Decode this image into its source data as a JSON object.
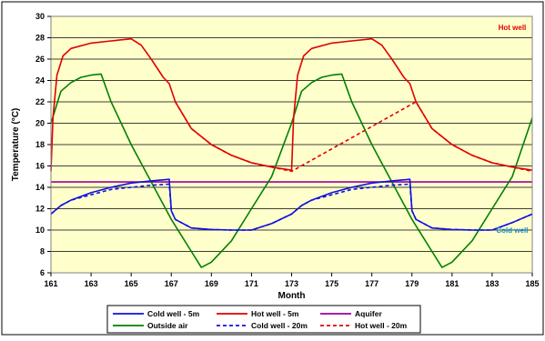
{
  "chart_data": {
    "type": "line",
    "title": "",
    "xlabel": "Month",
    "ylabel": "Temperature (°C)",
    "xlim": [
      161,
      185
    ],
    "ylim": [
      6,
      30
    ],
    "x_ticks": [
      161,
      163,
      165,
      167,
      169,
      171,
      173,
      175,
      177,
      179,
      181,
      183,
      185
    ],
    "y_ticks": [
      6,
      8,
      10,
      12,
      14,
      16,
      18,
      20,
      22,
      24,
      26,
      28,
      30
    ],
    "grid": "horizontal",
    "legend_position": "bottom",
    "annotations": [
      {
        "text": "Hot well",
        "x": 184,
        "y": 29,
        "color": "#e00000"
      },
      {
        "text": "Cold well",
        "x": 184,
        "y": 10,
        "color": "#1a8fd0"
      }
    ],
    "series": [
      {
        "name": "Cold well - 5m",
        "color": "#1010e0",
        "style": "solid",
        "points": [
          [
            161,
            11.5
          ],
          [
            161.5,
            12.3
          ],
          [
            162,
            12.8
          ],
          [
            163,
            13.5
          ],
          [
            164,
            14.0
          ],
          [
            165,
            14.4
          ],
          [
            166,
            14.6
          ],
          [
            166.9,
            14.75
          ],
          [
            167.0,
            11.8
          ],
          [
            167.2,
            11.0
          ],
          [
            168,
            10.2
          ],
          [
            169,
            10.05
          ],
          [
            170,
            10.0
          ],
          [
            171,
            10.0
          ],
          [
            172,
            10.6
          ],
          [
            173,
            11.5
          ],
          [
            173.5,
            12.3
          ],
          [
            174,
            12.8
          ],
          [
            175,
            13.5
          ],
          [
            176,
            14.0
          ],
          [
            177,
            14.4
          ],
          [
            178,
            14.6
          ],
          [
            178.9,
            14.75
          ],
          [
            179.0,
            11.8
          ],
          [
            179.2,
            11.0
          ],
          [
            180,
            10.2
          ],
          [
            181,
            10.05
          ],
          [
            182,
            10.0
          ],
          [
            183,
            10.0
          ],
          [
            184,
            10.7
          ],
          [
            185,
            11.5
          ]
        ]
      },
      {
        "name": "Hot well - 5m",
        "color": "#e00000",
        "style": "solid",
        "points": [
          [
            161,
            15.5
          ],
          [
            161.1,
            20.5
          ],
          [
            161.3,
            24.5
          ],
          [
            161.6,
            26.3
          ],
          [
            162,
            27.0
          ],
          [
            163,
            27.5
          ],
          [
            164,
            27.7
          ],
          [
            165,
            27.9
          ],
          [
            165.5,
            27.3
          ],
          [
            166,
            26.0
          ],
          [
            166.6,
            24.3
          ],
          [
            166.9,
            23.7
          ],
          [
            167.2,
            22.0
          ],
          [
            168,
            19.5
          ],
          [
            169,
            18.0
          ],
          [
            170,
            17.0
          ],
          [
            171,
            16.3
          ],
          [
            172,
            15.9
          ],
          [
            173,
            15.6
          ],
          [
            173.1,
            20.5
          ],
          [
            173.3,
            24.5
          ],
          [
            173.6,
            26.3
          ],
          [
            174,
            27.0
          ],
          [
            175,
            27.5
          ],
          [
            176,
            27.7
          ],
          [
            177,
            27.9
          ],
          [
            177.5,
            27.3
          ],
          [
            178,
            26.0
          ],
          [
            178.6,
            24.3
          ],
          [
            178.9,
            23.7
          ],
          [
            179.2,
            22.0
          ],
          [
            180,
            19.5
          ],
          [
            181,
            18.0
          ],
          [
            182,
            17.0
          ],
          [
            183,
            16.3
          ],
          [
            184,
            15.9
          ],
          [
            185,
            15.6
          ]
        ]
      },
      {
        "name": "Aquifer",
        "color": "#9b009b",
        "style": "solid",
        "points": [
          [
            161,
            14.5
          ],
          [
            185,
            14.5
          ]
        ]
      },
      {
        "name": "Outside air",
        "color": "#008000",
        "style": "solid",
        "points": [
          [
            161,
            20.0
          ],
          [
            161.5,
            23.0
          ],
          [
            162,
            23.8
          ],
          [
            162.5,
            24.3
          ],
          [
            163,
            24.5
          ],
          [
            163.5,
            24.6
          ],
          [
            164,
            22.0
          ],
          [
            165,
            18.0
          ],
          [
            166,
            14.5
          ],
          [
            167,
            11.0
          ],
          [
            168,
            8.0
          ],
          [
            168.5,
            6.5
          ],
          [
            169,
            7.0
          ],
          [
            170,
            9.0
          ],
          [
            171,
            12.0
          ],
          [
            172,
            15.0
          ],
          [
            173,
            20.0
          ],
          [
            173.5,
            23.0
          ],
          [
            174,
            23.8
          ],
          [
            174.5,
            24.3
          ],
          [
            175,
            24.5
          ],
          [
            175.5,
            24.6
          ],
          [
            176,
            22.0
          ],
          [
            177,
            18.0
          ],
          [
            178,
            14.5
          ],
          [
            179,
            11.0
          ],
          [
            180,
            8.0
          ],
          [
            180.5,
            6.5
          ],
          [
            181,
            7.0
          ],
          [
            182,
            9.0
          ],
          [
            183,
            12.0
          ],
          [
            184,
            15.0
          ],
          [
            185,
            20.5
          ]
        ]
      },
      {
        "name": "Cold well - 20m",
        "color": "#1010e0",
        "style": "dashed",
        "points": [
          [
            161,
            11.5
          ],
          [
            161.5,
            12.3
          ],
          [
            162,
            12.8
          ],
          [
            163,
            13.3
          ],
          [
            164,
            13.8
          ],
          [
            165,
            14.0
          ],
          [
            166,
            14.2
          ],
          [
            166.9,
            14.3
          ],
          [
            167.0,
            11.8
          ],
          [
            167.2,
            11.0
          ],
          [
            168,
            10.2
          ],
          [
            169,
            10.05
          ],
          [
            170,
            10.0
          ],
          [
            171,
            10.0
          ],
          [
            172,
            10.6
          ],
          [
            173,
            11.5
          ],
          [
            173.5,
            12.3
          ],
          [
            174,
            12.8
          ],
          [
            175,
            13.3
          ],
          [
            176,
            13.8
          ],
          [
            177,
            14.0
          ],
          [
            178,
            14.2
          ],
          [
            178.9,
            14.3
          ],
          [
            179.0,
            11.8
          ],
          [
            179.2,
            11.0
          ],
          [
            180,
            10.2
          ],
          [
            181,
            10.05
          ],
          [
            182,
            10.0
          ],
          [
            183,
            10.0
          ],
          [
            184,
            10.7
          ],
          [
            185,
            11.5
          ]
        ]
      },
      {
        "name": "Hot well - 20m",
        "color": "#e00000",
        "style": "dashed",
        "points": [
          [
            167.2,
            22.0
          ],
          [
            168,
            19.5
          ],
          [
            169,
            18.0
          ],
          [
            170,
            17.0
          ],
          [
            171,
            16.3
          ],
          [
            172,
            15.9
          ],
          [
            173,
            15.5
          ],
          [
            179.2,
            22.0
          ],
          [
            180,
            19.5
          ],
          [
            181,
            18.0
          ],
          [
            182,
            17.0
          ],
          [
            183,
            16.3
          ],
          [
            184,
            15.9
          ],
          [
            185,
            15.5
          ]
        ]
      }
    ]
  }
}
